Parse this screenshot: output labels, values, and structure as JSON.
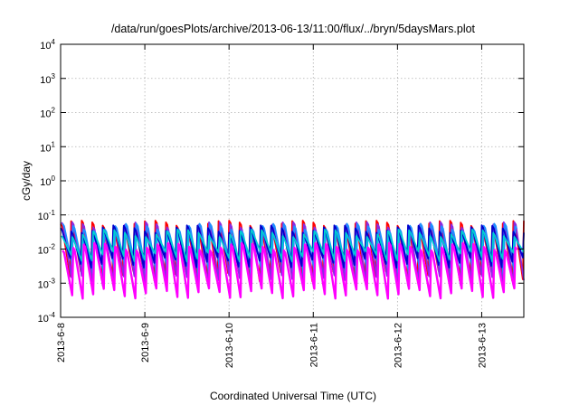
{
  "chart_data": {
    "type": "line",
    "title": "/data/run/goesPlots/archive/2013-06-13/11:00/flux/../bryn/5daysMars.plot",
    "xlabel": "Coordinated Universal Time (UTC)",
    "ylabel": "cGy/day",
    "yscale": "log",
    "ylim": [
      0.0001,
      10000
    ],
    "xlim": [
      "2013-06-08",
      "2013-06-13 12:00"
    ],
    "x_tick_labels": [
      "2013-6-8",
      "2013-6-9",
      "2013-6-10",
      "2013-6-11",
      "2013-6-12",
      "2013-6-13"
    ],
    "y_ticks": [
      {
        "base": "10",
        "exp": "4"
      },
      {
        "base": "10",
        "exp": "3"
      },
      {
        "base": "10",
        "exp": "2"
      },
      {
        "base": "10",
        "exp": "1"
      },
      {
        "base": "10",
        "exp": "0"
      },
      {
        "base": "10",
        "exp": "-1"
      },
      {
        "base": "10",
        "exp": "-2"
      },
      {
        "base": "10",
        "exp": "-3"
      },
      {
        "base": "10",
        "exp": "-4"
      }
    ],
    "grid": true,
    "legend": "none",
    "cycles_per_day": 8,
    "series": [
      {
        "color": "#ff0000",
        "peak": 0.055,
        "trough": 0.0016
      },
      {
        "color": "#8a2be2",
        "peak": 0.05,
        "trough": 0.0012
      },
      {
        "color": "#1e90ff",
        "peak": 0.045,
        "trough": 0.0025
      },
      {
        "color": "#0000cd",
        "peak": 0.04,
        "trough": 0.004
      },
      {
        "color": "#00ced1",
        "peak": 0.03,
        "trough": 0.006
      },
      {
        "color": "#ff00ff",
        "peak": 0.012,
        "trough": 0.0005
      }
    ]
  }
}
